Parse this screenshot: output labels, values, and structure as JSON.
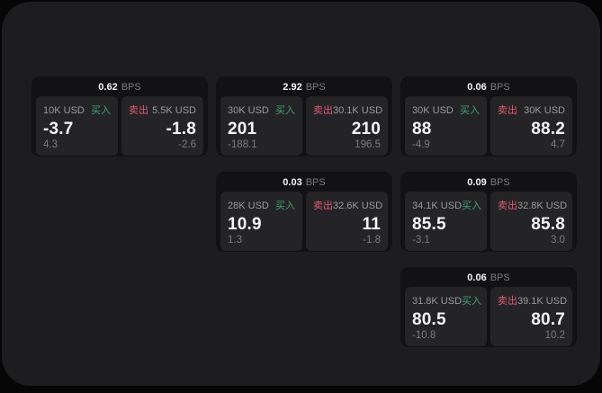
{
  "labels": {
    "bps": "BPS",
    "buy": "买入",
    "sell": "卖出"
  },
  "colors": {
    "background": "#060606",
    "surface": "#1d1d1f",
    "card": "#121214",
    "tile": "#242427",
    "text_primary": "#f5f5f5",
    "text_secondary": "#9a9a9e",
    "text_muted": "#7b7b80",
    "buy_green": "#40a36c",
    "sell_red": "#e05a6d"
  },
  "cards": [
    {
      "bps": "0.62",
      "buy": {
        "amount": "10K USD",
        "price": "-3.7",
        "delta": "4.3"
      },
      "sell": {
        "amount": "5.5K USD",
        "price": "-1.8",
        "delta": "-2.6"
      }
    },
    {
      "bps": "2.92",
      "buy": {
        "amount": "30K USD",
        "price": "201",
        "delta": "-188.1"
      },
      "sell": {
        "amount": "30.1K USD",
        "price": "210",
        "delta": "196.5"
      }
    },
    {
      "bps": "0.06",
      "buy": {
        "amount": "30K USD",
        "price": "88",
        "delta": "-4.9"
      },
      "sell": {
        "amount": "30K USD",
        "price": "88.2",
        "delta": "4.7"
      }
    },
    {
      "bps": "0.03",
      "buy": {
        "amount": "28K USD",
        "price": "10.9",
        "delta": "1.3"
      },
      "sell": {
        "amount": "32.6K USD",
        "price": "11",
        "delta": "-1.8"
      }
    },
    {
      "bps": "0.09",
      "buy": {
        "amount": "34.1K USD",
        "price": "85.5",
        "delta": "-3.1"
      },
      "sell": {
        "amount": "32.8K USD",
        "price": "85.8",
        "delta": "3.0"
      }
    },
    {
      "bps": "0.06",
      "buy": {
        "amount": "31.8K USD",
        "price": "80.5",
        "delta": "-10.8"
      },
      "sell": {
        "amount": "39.1K USD",
        "price": "80.7",
        "delta": "10.2"
      }
    }
  ]
}
